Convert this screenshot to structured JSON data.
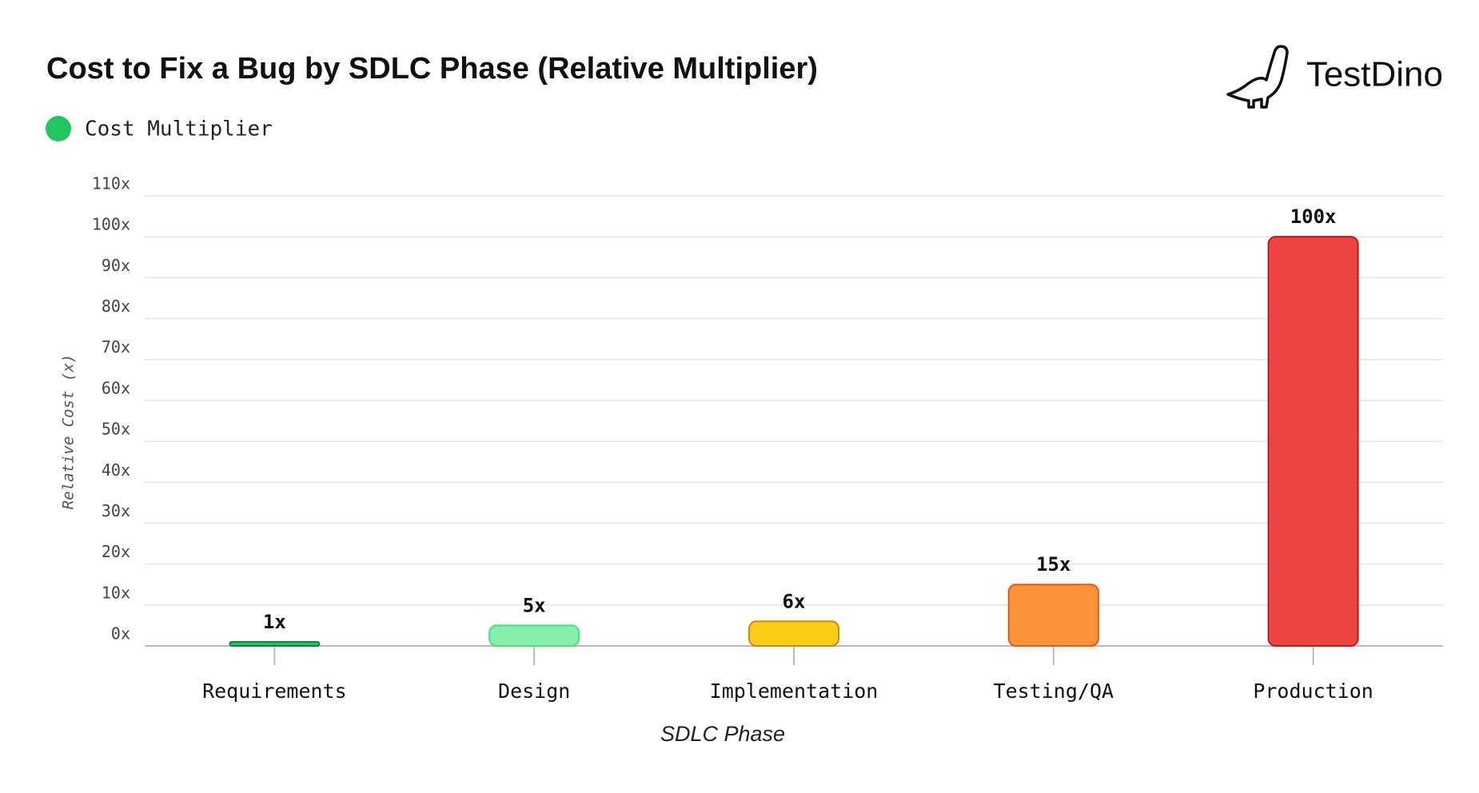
{
  "chart_data": {
    "type": "bar",
    "title": "Cost to Fix a Bug by SDLC Phase (Relative Multiplier)",
    "logo": "TestDino",
    "x_label": "SDLC Phase",
    "y_label": "Relative Cost (x)",
    "categories": [
      "Requirements",
      "Design",
      "Implementation",
      "Testing/QA",
      "Production"
    ],
    "series": [
      {
        "name": "Cost Multiplier",
        "color": "#22c55e",
        "values": [
          1,
          5,
          6,
          15,
          100
        ],
        "value_labels": [
          "1x",
          "5x",
          "6x",
          "15x",
          "100x"
        ]
      }
    ],
    "colors": [
      "#22c55e",
      "#86efac",
      "#facc15",
      "#fb923c",
      "#ef4444"
    ],
    "edge_colors": [
      "#15803d",
      "#4ade80",
      "#ca8a04",
      "#ea580c",
      "#b91c1c"
    ],
    "ylim": [
      0,
      110
    ],
    "yticks": [
      {
        "value": 0,
        "label": "0x"
      },
      {
        "value": 10,
        "label": "10x"
      },
      {
        "value": 20,
        "label": "20x"
      },
      {
        "value": 30,
        "label": "30x"
      },
      {
        "value": 40,
        "label": "40x"
      },
      {
        "value": 50,
        "label": "50x"
      },
      {
        "value": 60,
        "label": "60x"
      },
      {
        "value": 70,
        "label": "70x"
      },
      {
        "value": 80,
        "label": "80x"
      },
      {
        "value": 90,
        "label": "90x"
      },
      {
        "value": 100,
        "label": "100x"
      },
      {
        "value": 110,
        "label": "110x"
      }
    ],
    "grid": true
  }
}
